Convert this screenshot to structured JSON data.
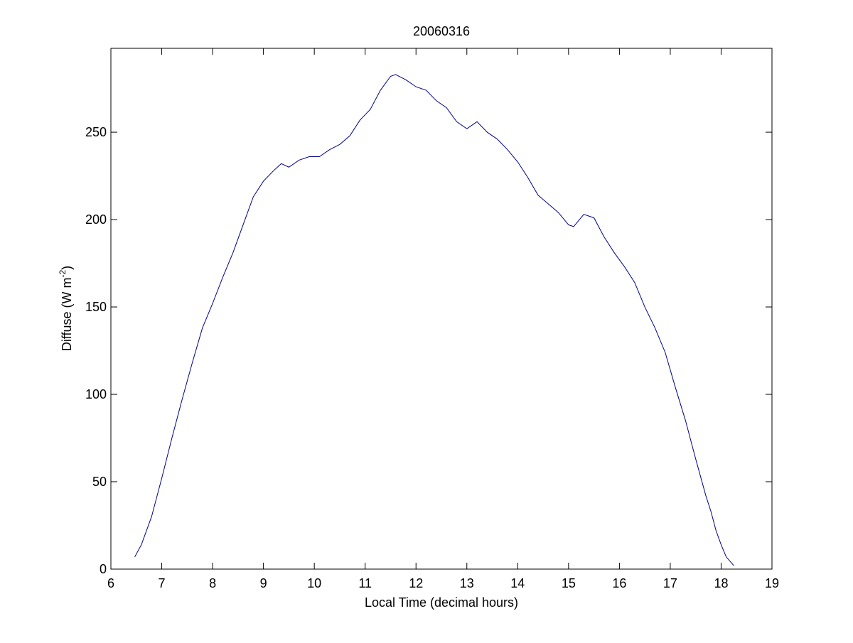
{
  "chart_data": {
    "type": "line",
    "title": "20060316",
    "x_label": "Local Time (decimal hours)",
    "y_label": [
      "Diffuse (W m",
      "-2",
      ")"
    ],
    "xlim": [
      6,
      19
    ],
    "xticks": [
      6,
      7,
      8,
      9,
      10,
      11,
      12,
      13,
      14,
      15,
      16,
      17,
      18,
      19
    ],
    "ylim": [
      0,
      298
    ],
    "yticks": [
      0,
      50,
      100,
      150,
      200,
      250
    ],
    "box": true,
    "series": [
      {
        "color": "#00008b",
        "x": [
          6.47,
          6.6,
          6.8,
          7.0,
          7.2,
          7.4,
          7.6,
          7.8,
          8.0,
          8.2,
          8.4,
          8.6,
          8.8,
          9.0,
          9.2,
          9.35,
          9.5,
          9.7,
          9.9,
          10.1,
          10.3,
          10.5,
          10.7,
          10.9,
          11.1,
          11.3,
          11.5,
          11.6,
          11.8,
          12.0,
          12.2,
          12.4,
          12.6,
          12.8,
          13.0,
          13.2,
          13.4,
          13.6,
          13.8,
          14.0,
          14.2,
          14.4,
          14.6,
          14.8,
          15.0,
          15.1,
          15.3,
          15.5,
          15.7,
          15.9,
          16.1,
          16.3,
          16.5,
          16.7,
          16.9,
          17.1,
          17.3,
          17.5,
          17.7,
          17.8,
          17.9,
          18.0,
          18.1,
          18.25
        ],
        "values": [
          7,
          14,
          30,
          52,
          75,
          97,
          118,
          138,
          152,
          167,
          181,
          197,
          213,
          222,
          228,
          232,
          230,
          234,
          236,
          236,
          240,
          243,
          248,
          257,
          263,
          274,
          282,
          283,
          280,
          276,
          274,
          268,
          264,
          256,
          252,
          256,
          250,
          246,
          240,
          233,
          224,
          214,
          209,
          204,
          197,
          196,
          203,
          201,
          190,
          181,
          173,
          164,
          150,
          138,
          124,
          104,
          85,
          63,
          42,
          33,
          22,
          14,
          7,
          2
        ]
      }
    ]
  }
}
